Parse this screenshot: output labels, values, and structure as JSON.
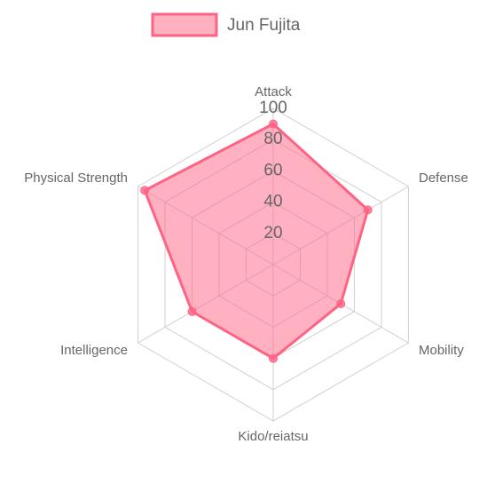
{
  "chart_data": {
    "type": "radar",
    "categories": [
      "Attack",
      "Defense",
      "Mobility",
      "Kido/reiatsu",
      "Intelligence",
      "Physical Strength"
    ],
    "series": [
      {
        "name": "Jun Fujita",
        "color": "#ff6384",
        "values": [
          90,
          70,
          50,
          60,
          60,
          95
        ]
      }
    ],
    "rlim": [
      0,
      100
    ],
    "rticks": [
      20,
      40,
      60,
      80,
      100
    ],
    "grid": true,
    "legend": "top"
  }
}
